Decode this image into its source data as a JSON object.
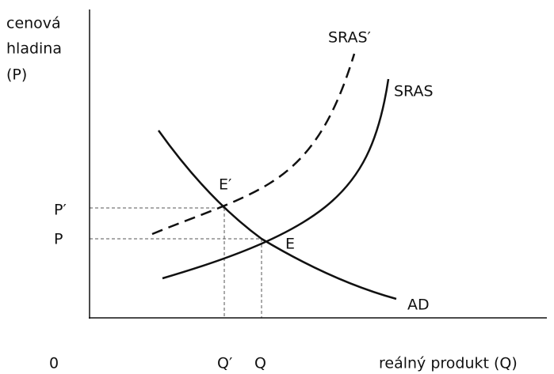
{
  "y_axis": {
    "label_lines": [
      "cenová",
      "hladina",
      "(P)"
    ]
  },
  "x_axis": {
    "label": "reálný produkt (Q)",
    "origin": "0"
  },
  "price_labels": [
    "P′",
    "P"
  ],
  "quantity_labels": [
    "Q′",
    "Q"
  ],
  "curves": {
    "ad": "AD",
    "sras": "SRAS",
    "sras_shifted": "SRAS′"
  },
  "points": {
    "e_shifted": "E′",
    "e": "E"
  }
}
